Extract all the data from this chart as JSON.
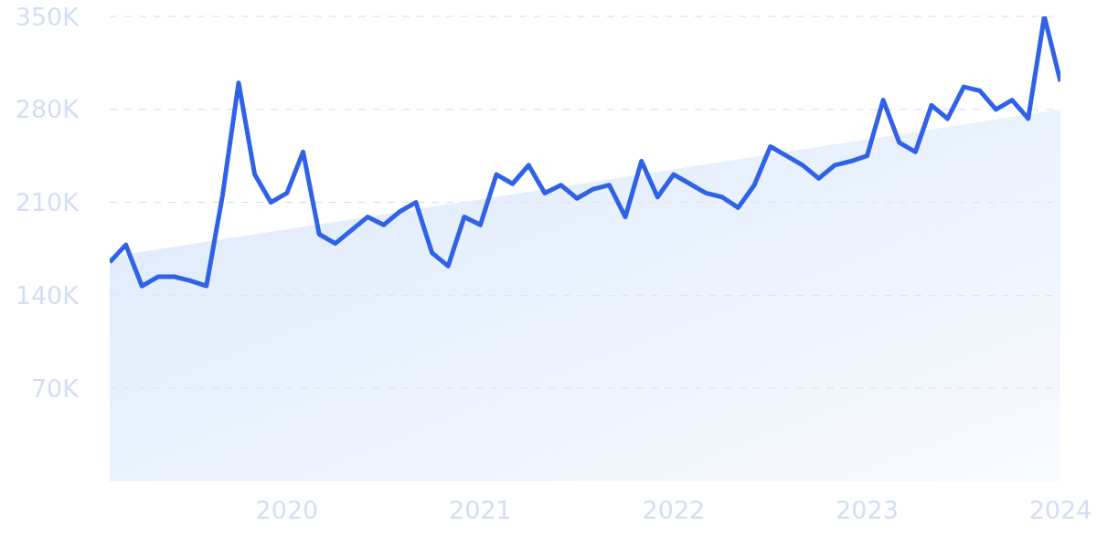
{
  "chart_data": {
    "type": "line",
    "x": [
      "2019-02",
      "2019-03",
      "2019-04",
      "2019-05",
      "2019-06",
      "2019-07",
      "2019-08",
      "2019-09",
      "2019-10",
      "2019-11",
      "2019-12",
      "2020-01",
      "2020-02",
      "2020-03",
      "2020-04",
      "2020-05",
      "2020-06",
      "2020-07",
      "2020-08",
      "2020-09",
      "2020-10",
      "2020-11",
      "2020-12",
      "2021-01",
      "2021-02",
      "2021-03",
      "2021-04",
      "2021-05",
      "2021-06",
      "2021-07",
      "2021-08",
      "2021-09",
      "2021-10",
      "2021-11",
      "2021-12",
      "2022-01",
      "2022-02",
      "2022-03",
      "2022-04",
      "2022-05",
      "2022-06",
      "2022-07",
      "2022-08",
      "2022-09",
      "2022-10",
      "2022-11",
      "2022-12",
      "2023-01",
      "2023-02",
      "2023-03",
      "2023-04",
      "2023-05",
      "2023-06",
      "2023-07",
      "2023-08",
      "2023-09",
      "2023-10",
      "2023-11",
      "2023-12",
      "2024-01"
    ],
    "series": [
      {
        "type": "area",
        "color": "#dce9fa",
        "x": [
          "2019-02",
          "2024-01"
        ],
        "values": [
          169000,
          280000
        ]
      },
      {
        "type": "line",
        "color": "#2f62e6",
        "values": [
          165000,
          178000,
          147000,
          154000,
          154000,
          151000,
          147000,
          215000,
          300000,
          231000,
          210000,
          217000,
          248000,
          186000,
          179000,
          189000,
          199000,
          193000,
          203000,
          210000,
          172000,
          162000,
          199000,
          193000,
          231000,
          224000,
          238000,
          217000,
          223000,
          213000,
          220000,
          223000,
          199000,
          241000,
          214000,
          231000,
          224000,
          217000,
          214000,
          206000,
          223000,
          252000,
          245000,
          238000,
          228000,
          238000,
          241000,
          245000,
          287000,
          255000,
          248000,
          283000,
          273000,
          297000,
          294000,
          280000,
          287000,
          273000,
          350000,
          301000
        ]
      }
    ],
    "xlim": [
      "2019-02",
      "2024-01"
    ],
    "xticks": [
      "2020",
      "2021",
      "2022",
      "2023",
      "2024"
    ],
    "ylim": [
      0,
      350000
    ],
    "yticks": [
      {
        "value": 70000,
        "label": "70K"
      },
      {
        "value": 140000,
        "label": "140K"
      },
      {
        "value": 210000,
        "label": "210K"
      },
      {
        "value": 280000,
        "label": "280K"
      },
      {
        "value": 350000,
        "label": "350K"
      }
    ],
    "grid": "y",
    "marker": "none",
    "line_style": "solid"
  }
}
